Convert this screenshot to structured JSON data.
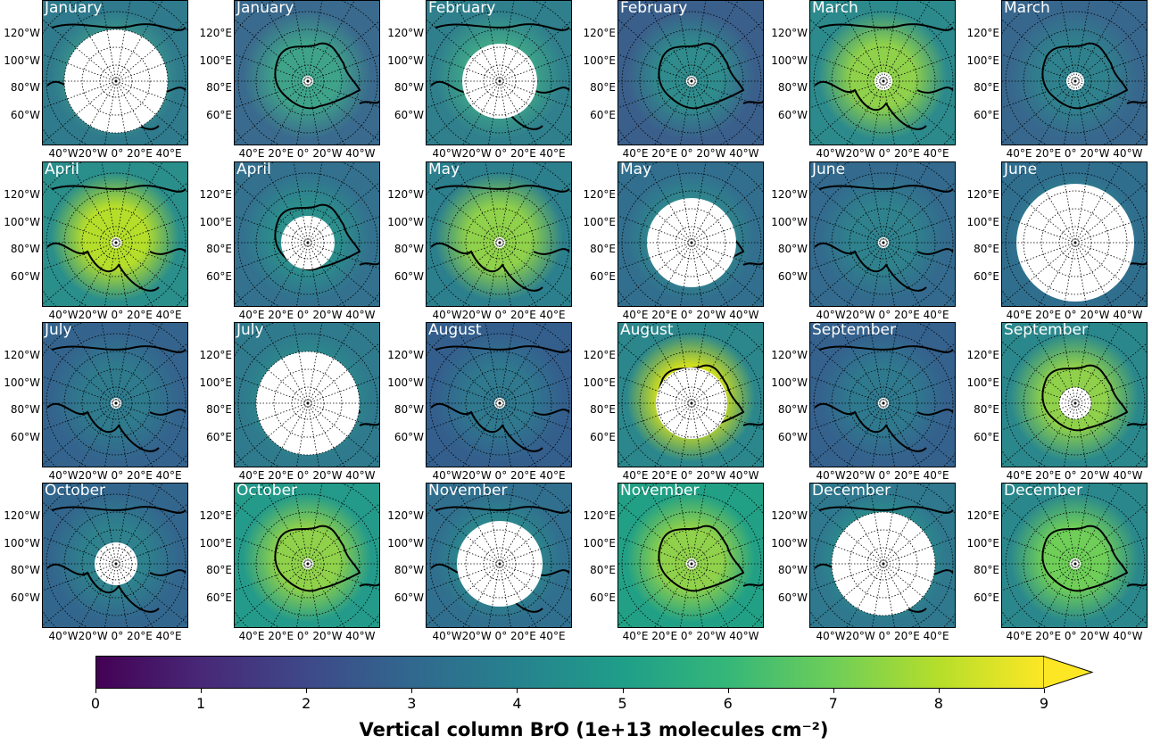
{
  "panels": [
    {
      "title": "January",
      "hemisphere": "north",
      "bg": "#2f7a8c",
      "hi": "#3fa38a"
    },
    {
      "title": "January",
      "hemisphere": "south",
      "bg": "#3a6a8d",
      "hi": "#3fa38a"
    },
    {
      "title": "February",
      "hemisphere": "north",
      "bg": "#2f7f8c",
      "hi": "#40a888"
    },
    {
      "title": "February",
      "hemisphere": "south",
      "bg": "#3b5f8b",
      "hi": "#2f8b8c"
    },
    {
      "title": "March",
      "hemisphere": "north",
      "bg": "#2c8a8c",
      "hi": "#8fd14a"
    },
    {
      "title": "March",
      "hemisphere": "south",
      "bg": "#38678d",
      "hi": "#2f828d"
    },
    {
      "title": "April",
      "hemisphere": "north",
      "bg": "#2a8e8b",
      "hi": "#b5de2b"
    },
    {
      "title": "April",
      "hemisphere": "south",
      "bg": "#33718e",
      "hi": "#2b8f8c"
    },
    {
      "title": "May",
      "hemisphere": "north",
      "bg": "#2c7f8d",
      "hi": "#8fd14a"
    },
    {
      "title": "May",
      "hemisphere": "south",
      "bg": "#326f8e",
      "hi": "#2e8e8c"
    },
    {
      "title": "June",
      "hemisphere": "north",
      "bg": "#336a8d",
      "hi": "#2f828d"
    },
    {
      "title": "June",
      "hemisphere": "south",
      "bg": "#306e8e",
      "hi": "#2a8c8c"
    },
    {
      "title": "July",
      "hemisphere": "north",
      "bg": "#34648d",
      "hi": "#2f7a8d"
    },
    {
      "title": "July",
      "hemisphere": "south",
      "bg": "#2f7a8d",
      "hi": "#2a928b"
    },
    {
      "title": "August",
      "hemisphere": "north",
      "bg": "#345f8d",
      "hi": "#2f788e"
    },
    {
      "title": "August",
      "hemisphere": "south",
      "bg": "#2b878c",
      "hi": "#d6e21a"
    },
    {
      "title": "September",
      "hemisphere": "north",
      "bg": "#35618d",
      "hi": "#2f798e"
    },
    {
      "title": "September",
      "hemisphere": "south",
      "bg": "#2a888c",
      "hi": "#8fd14a"
    },
    {
      "title": "October",
      "hemisphere": "north",
      "bg": "#33668d",
      "hi": "#2e818d"
    },
    {
      "title": "October",
      "hemisphere": "south",
      "bg": "#249a8a",
      "hi": "#8fd14a"
    },
    {
      "title": "November",
      "hemisphere": "north",
      "bg": "#316f8e",
      "hi": "#2a8c8c"
    },
    {
      "title": "November",
      "hemisphere": "south",
      "bg": "#22a085",
      "hi": "#8fd14a"
    },
    {
      "title": "December",
      "hemisphere": "north",
      "bg": "#2f788e",
      "hi": "#27998a"
    },
    {
      "title": "December",
      "hemisphere": "south",
      "bg": "#2a888c",
      "hi": "#6ece58"
    }
  ],
  "north_ylabels": [
    "120°W",
    "100°W",
    "80°W",
    "60°W"
  ],
  "south_ylabels": [
    "120°E",
    "100°E",
    "80°E",
    "60°E"
  ],
  "north_xlabel": "40°W20°W 0° 20°E 40°E",
  "south_xlabel": "40°E 20°E 0° 20°W 40°W",
  "colorbar": {
    "label": "Vertical column BrO (1e+13 molecules cm⁻²)",
    "ticks": [
      "0",
      "1",
      "2",
      "3",
      "4",
      "5",
      "6",
      "7",
      "8",
      "9"
    ],
    "min": 0,
    "max": 9,
    "extend": "max"
  }
}
